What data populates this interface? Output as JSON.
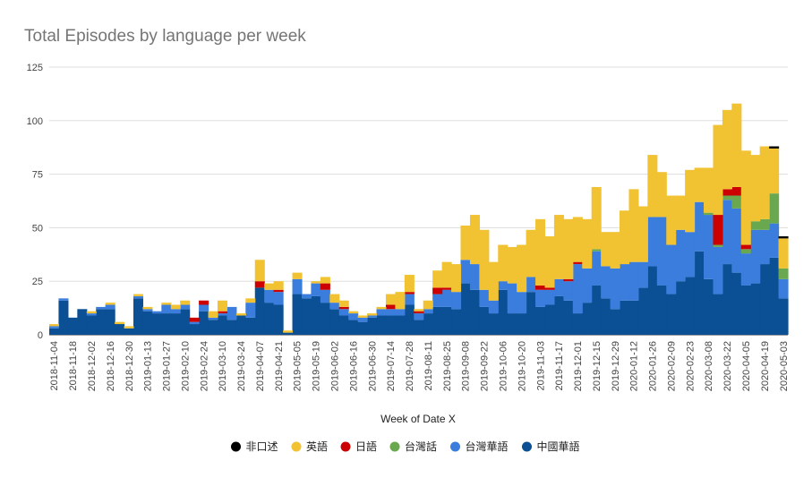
{
  "chart_data": {
    "type": "area",
    "stacked": true,
    "step": true,
    "title": "Total Episodes by language per week",
    "xlabel": "Week of Date X",
    "ylabel": "",
    "ylim": [
      0,
      125
    ],
    "yticks": [
      0,
      25,
      50,
      75,
      100,
      125
    ],
    "grid": true,
    "legend_position": "bottom",
    "x": [
      "2018-11-04",
      "2018-11-11",
      "2018-11-18",
      "2018-11-25",
      "2018-12-02",
      "2018-12-09",
      "2018-12-16",
      "2018-12-23",
      "2018-12-30",
      "2019-01-06",
      "2019-01-13",
      "2019-01-20",
      "2019-01-27",
      "2019-02-03",
      "2019-02-10",
      "2019-02-17",
      "2019-02-24",
      "2019-03-03",
      "2019-03-10",
      "2019-03-17",
      "2019-03-24",
      "2019-03-31",
      "2019-04-07",
      "2019-04-14",
      "2019-04-21",
      "2019-04-28",
      "2019-05-05",
      "2019-05-12",
      "2019-05-19",
      "2019-05-26",
      "2019-06-02",
      "2019-06-09",
      "2019-06-16",
      "2019-06-23",
      "2019-06-30",
      "2019-07-07",
      "2019-07-14",
      "2019-07-21",
      "2019-07-28",
      "2019-08-04",
      "2019-08-11",
      "2019-08-18",
      "2019-08-25",
      "2019-09-01",
      "2019-09-08",
      "2019-09-15",
      "2019-09-22",
      "2019-09-29",
      "2019-10-06",
      "2019-10-13",
      "2019-10-20",
      "2019-10-27",
      "2019-11-03",
      "2019-11-10",
      "2019-11-17",
      "2019-11-24",
      "2019-12-01",
      "2019-12-08",
      "2019-12-15",
      "2019-12-22",
      "2019-12-29",
      "2020-01-05",
      "2020-01-12",
      "2020-01-19",
      "2020-01-26",
      "2020-02-02",
      "2020-02-09",
      "2020-02-16",
      "2020-02-23",
      "2020-03-01",
      "2020-03-08",
      "2020-03-15",
      "2020-03-22",
      "2020-03-29",
      "2020-04-05",
      "2020-04-12",
      "2020-04-19",
      "2020-04-26",
      "2020-05-03"
    ],
    "xtick_labels": [
      "2018-11-04",
      "2018-11-18",
      "2018-12-02",
      "2018-12-16",
      "2018-12-30",
      "2019-01-13",
      "2019-01-27",
      "2019-02-10",
      "2019-02-24",
      "2019-03-10",
      "2019-03-24",
      "2019-04-07",
      "2019-04-21",
      "2019-05-05",
      "2019-05-19",
      "2019-06-02",
      "2019-06-16",
      "2019-06-30",
      "2019-07-14",
      "2019-07-28",
      "2019-08-11",
      "2019-08-25",
      "2019-09-08",
      "2019-09-22",
      "2019-10-06",
      "2019-10-20",
      "2019-11-03",
      "2019-11-17",
      "2019-12-01",
      "2019-12-15",
      "2019-12-29",
      "2020-01-12",
      "2020-01-26",
      "2020-02-09",
      "2020-02-23",
      "2020-03-08",
      "2020-03-22",
      "2020-04-05",
      "2020-04-19",
      "2020-05-03"
    ],
    "series": [
      {
        "name": "中國華語",
        "color": "#0b4f94",
        "values": [
          3,
          16,
          8,
          12,
          9,
          12,
          12,
          5,
          3,
          17,
          11,
          10,
          10,
          10,
          12,
          5,
          11,
          7,
          9,
          7,
          9,
          8,
          22,
          15,
          14,
          1,
          19,
          17,
          18,
          15,
          12,
          9,
          7,
          6,
          8,
          9,
          9,
          9,
          14,
          7,
          10,
          13,
          13,
          12,
          24,
          21,
          13,
          10,
          21,
          10,
          10,
          20,
          13,
          14,
          18,
          16,
          10,
          15,
          23,
          17,
          12,
          16,
          16,
          22,
          32,
          23,
          19,
          25,
          27,
          39,
          26,
          19,
          33,
          29,
          23,
          24,
          33,
          36,
          17
        ]
      },
      {
        "name": "台灣華語",
        "color": "#3b7ddd",
        "values": [
          1,
          1,
          0,
          0,
          1,
          1,
          2,
          0,
          0,
          1,
          1,
          1,
          4,
          2,
          2,
          1,
          3,
          1,
          1,
          6,
          0,
          7,
          0,
          6,
          6,
          0,
          7,
          2,
          6,
          6,
          3,
          3,
          3,
          2,
          1,
          3,
          3,
          3,
          5,
          3,
          2,
          6,
          8,
          8,
          11,
          12,
          8,
          6,
          4,
          14,
          10,
          7,
          8,
          7,
          8,
          9,
          23,
          16,
          16,
          15,
          19,
          17,
          18,
          12,
          23,
          32,
          23,
          24,
          21,
          23,
          30,
          22,
          30,
          30,
          15,
          25,
          16,
          16,
          9
        ]
      },
      {
        "name": "台灣話",
        "color": "#6aa84f",
        "values": [
          0,
          0,
          0,
          0,
          0,
          0,
          0,
          0,
          0,
          0,
          0,
          0,
          0,
          0,
          0,
          0,
          0,
          0,
          0,
          0,
          0,
          0,
          0,
          0,
          0,
          0,
          0,
          0,
          0,
          0,
          0,
          0,
          0,
          0,
          0,
          0,
          0,
          0,
          0,
          0,
          0,
          0,
          0,
          0,
          0,
          0,
          0,
          0,
          0,
          0,
          0,
          0,
          0,
          0,
          0,
          0,
          0,
          0,
          1,
          0,
          0,
          0,
          0,
          0,
          0,
          0,
          0,
          0,
          0,
          0,
          1,
          1,
          2,
          6,
          2,
          4,
          5,
          14,
          5
        ]
      },
      {
        "name": "日語",
        "color": "#cc0000",
        "values": [
          0,
          0,
          0,
          0,
          0,
          0,
          0,
          0,
          0,
          0,
          0,
          0,
          0,
          0,
          0,
          2,
          2,
          0,
          1,
          0,
          0,
          0,
          3,
          0,
          1,
          0,
          0,
          0,
          0,
          3,
          0,
          1,
          0,
          0,
          0,
          0,
          2,
          0,
          1,
          1,
          0,
          3,
          1,
          0,
          0,
          0,
          0,
          0,
          0,
          0,
          0,
          0,
          2,
          1,
          0,
          1,
          1,
          0,
          0,
          0,
          0,
          0,
          0,
          0,
          0,
          0,
          0,
          0,
          0,
          0,
          0,
          14,
          3,
          4,
          2,
          0,
          0,
          0,
          0
        ]
      },
      {
        "name": "英語",
        "color": "#f1c232",
        "values": [
          1,
          0,
          0,
          0,
          1,
          0,
          1,
          1,
          1,
          1,
          1,
          0,
          1,
          2,
          2,
          0,
          0,
          3,
          5,
          0,
          1,
          2,
          10,
          3,
          4,
          1,
          3,
          0,
          1,
          3,
          4,
          3,
          1,
          1,
          1,
          1,
          5,
          8,
          8,
          1,
          4,
          8,
          12,
          13,
          16,
          23,
          28,
          18,
          17,
          17,
          22,
          22,
          31,
          24,
          30,
          28,
          21,
          23,
          29,
          16,
          17,
          25,
          34,
          26,
          29,
          21,
          23,
          16,
          29,
          16,
          21,
          42,
          37,
          39,
          44,
          31,
          34,
          21,
          14
        ]
      },
      {
        "name": "非口述",
        "color": "#000000",
        "values": [
          0,
          0,
          0,
          0,
          0,
          0,
          0,
          0,
          0,
          0,
          0,
          0,
          0,
          0,
          0,
          0,
          0,
          0,
          0,
          0,
          0,
          0,
          0,
          0,
          0,
          0,
          0,
          0,
          0,
          0,
          0,
          0,
          0,
          0,
          0,
          0,
          0,
          0,
          0,
          0,
          0,
          0,
          0,
          0,
          0,
          0,
          0,
          0,
          0,
          0,
          0,
          0,
          0,
          0,
          0,
          0,
          0,
          0,
          0,
          0,
          0,
          0,
          0,
          0,
          0,
          0,
          0,
          0,
          0,
          0,
          0,
          0,
          0,
          0,
          0,
          0,
          0,
          1,
          1
        ]
      }
    ],
    "legend_order": [
      "非口述",
      "英語",
      "日語",
      "台灣話",
      "台灣華語",
      "中國華語"
    ]
  }
}
